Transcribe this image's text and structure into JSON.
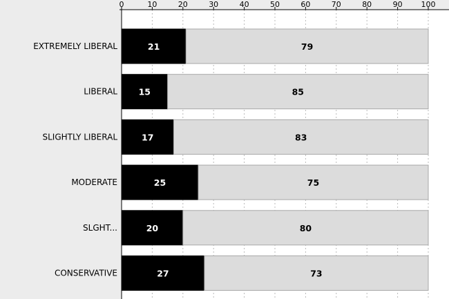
{
  "chart_data": {
    "type": "bar",
    "orientation": "horizontal",
    "stacked": true,
    "categories": [
      "EXTREMELY LIBERAL",
      "LIBERAL",
      "SLIGHTLY LIBERAL",
      "MODERATE",
      "SLGHT...",
      "CONSERVATIVE"
    ],
    "series": [
      {
        "values": [
          21,
          15,
          17,
          25,
          20,
          27
        ],
        "color": "#000000",
        "label_color": "#ffffff"
      },
      {
        "values": [
          79,
          85,
          83,
          75,
          80,
          73
        ],
        "color": "#dcdcdc",
        "label_color": "#000000"
      }
    ],
    "xlim": [
      0,
      100
    ],
    "xticks": [
      0,
      10,
      20,
      30,
      40,
      50,
      60,
      70,
      80,
      90,
      100
    ],
    "grid": true,
    "title": "",
    "xlabel": "",
    "ylabel": ""
  }
}
